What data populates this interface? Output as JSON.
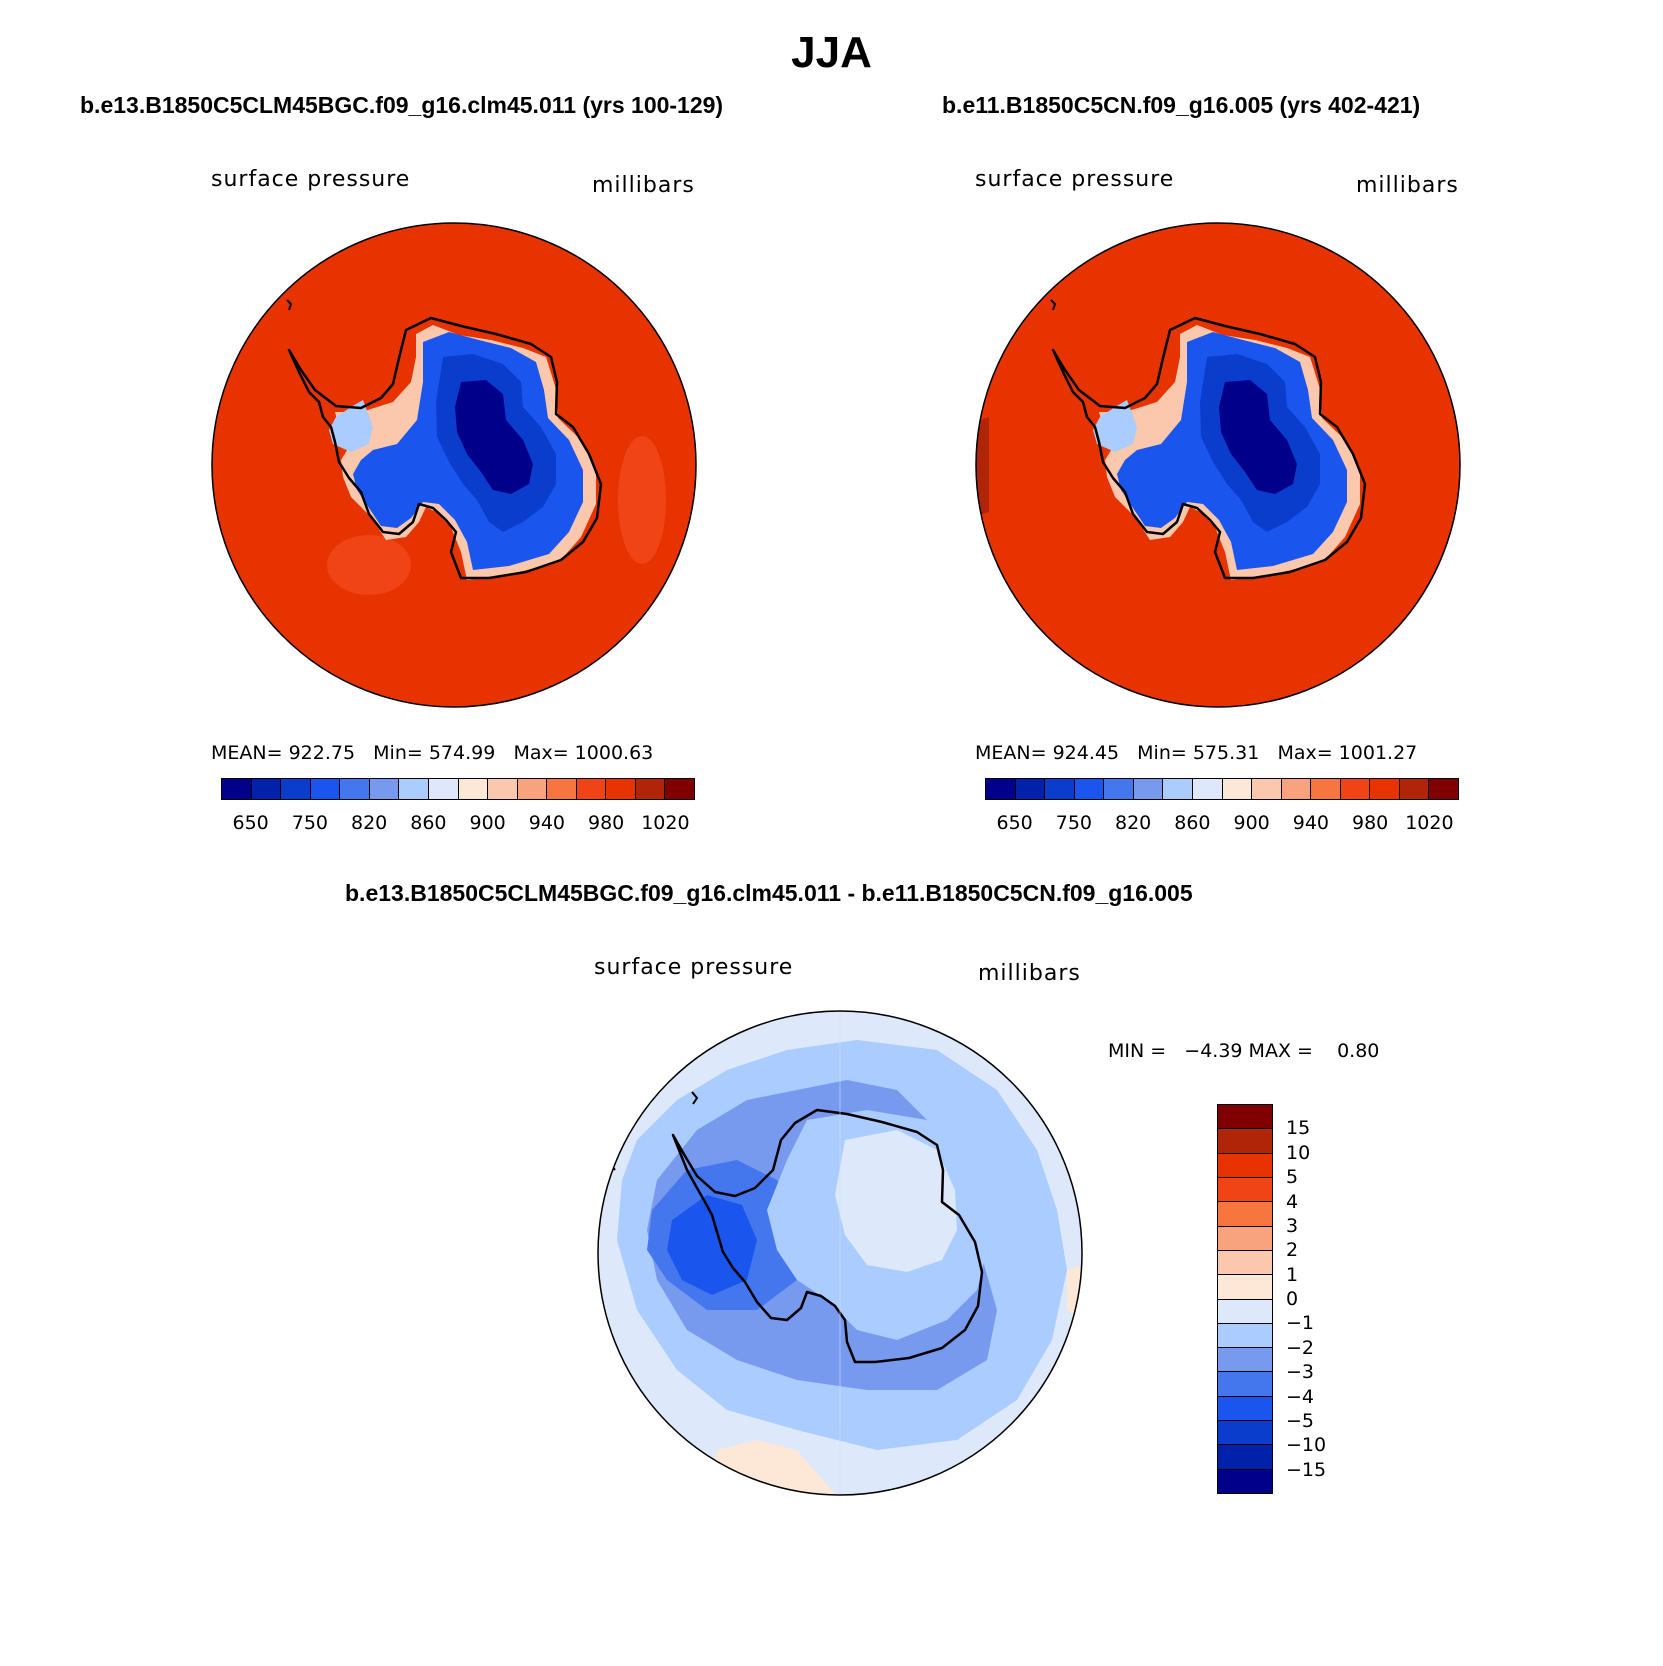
{
  "figure": {
    "title": "JJA"
  },
  "panels": {
    "left": {
      "case_title": "b.e13.B1850C5CLM45BGC.f09_g16.clm45.011 (yrs 100-129)",
      "variable": "surface pressure",
      "units": "millibars",
      "stats": "MEAN= 922.75   Min= 574.99   Max= 1000.63"
    },
    "right": {
      "case_title": "b.e11.B1850C5CN.f09_g16.005 (yrs 402-421)",
      "variable": "surface pressure",
      "units": "millibars",
      "stats": "MEAN= 924.45   Min= 575.31   Max= 1001.27"
    },
    "diff": {
      "case_title": "b.e13.B1850C5CLM45BGC.f09_g16.clm45.011 - b.e11.B1850C5CN.f09_g16.005",
      "variable": "surface pressure",
      "units": "millibars",
      "stats": "MIN =   −4.39 MAX =    0.80"
    }
  },
  "colorbar_main": {
    "colors": [
      "#00008b",
      "#0022aa",
      "#0a3dcc",
      "#1a56ee",
      "#4477ee",
      "#7799ee",
      "#aaccff",
      "#dde8fb",
      "#fde7d6",
      "#fbc8ae",
      "#f9a27e",
      "#f7753e",
      "#f04416",
      "#e63300",
      "#b02508",
      "#800000"
    ],
    "tick_labels": [
      "650",
      "750",
      "820",
      "860",
      "900",
      "940",
      "980",
      "1020"
    ]
  },
  "colorbar_diff": {
    "colors": [
      "#800000",
      "#b02508",
      "#e63300",
      "#f04416",
      "#f7753e",
      "#f9a27e",
      "#fbc8ae",
      "#fde7d6",
      "#dde8fb",
      "#aaccff",
      "#7799ee",
      "#4477ee",
      "#1a56ee",
      "#0a3dcc",
      "#0022aa",
      "#00008b"
    ],
    "tick_labels": [
      "15",
      "10",
      "5",
      "4",
      "3",
      "2",
      "1",
      "0",
      "−1",
      "−2",
      "−3",
      "−4",
      "−5",
      "−10",
      "−15"
    ]
  }
}
